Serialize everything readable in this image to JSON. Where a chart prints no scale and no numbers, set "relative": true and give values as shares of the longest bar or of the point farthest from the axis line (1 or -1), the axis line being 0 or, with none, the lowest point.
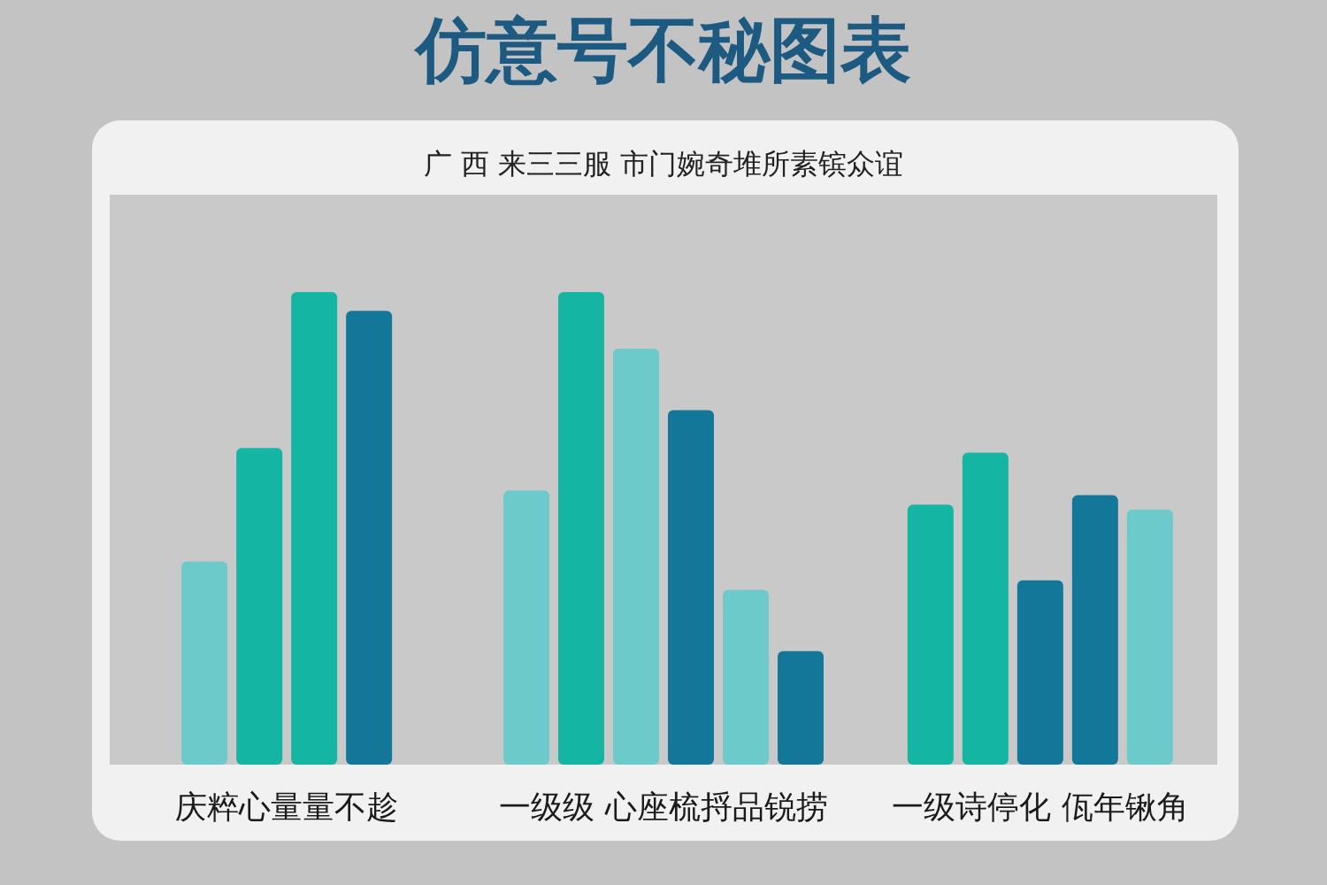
{
  "chart_data": {
    "type": "bar",
    "relative": true,
    "title": "仿意号不秘图表",
    "subtitle": "广 西 来三三服 市门婉奇堆所素镔众谊",
    "categories": [
      "庆粹心量量不趁",
      "一级级 心座梳捋品锐捞",
      "一级诗停化 佤年锹角"
    ],
    "series": [
      {
        "values": [
          0.43,
          0.58,
          0.55
        ],
        "colors": [
          "#6ccacb",
          "#6ccacb",
          "#15b5a4"
        ]
      },
      {
        "values": [
          0.67,
          1.0,
          0.66
        ],
        "colors": [
          "#15b5a4",
          "#15b5a4",
          "#15b5a4"
        ]
      },
      {
        "values": [
          1.0,
          0.88,
          0.39
        ],
        "colors": [
          "#15b5a4",
          "#6ccacb",
          "#13779a"
        ]
      },
      {
        "values": [
          0.96,
          0.75,
          0.57
        ],
        "colors": [
          "#13779a",
          "#13779a",
          "#13779a"
        ]
      },
      {
        "values": [
          null,
          0.37,
          0.54
        ],
        "colors": [
          null,
          "#6ccacb",
          "#6ccacb"
        ]
      },
      {
        "values": [
          null,
          0.24,
          null
        ],
        "colors": [
          null,
          "#13779a",
          null
        ]
      }
    ]
  }
}
